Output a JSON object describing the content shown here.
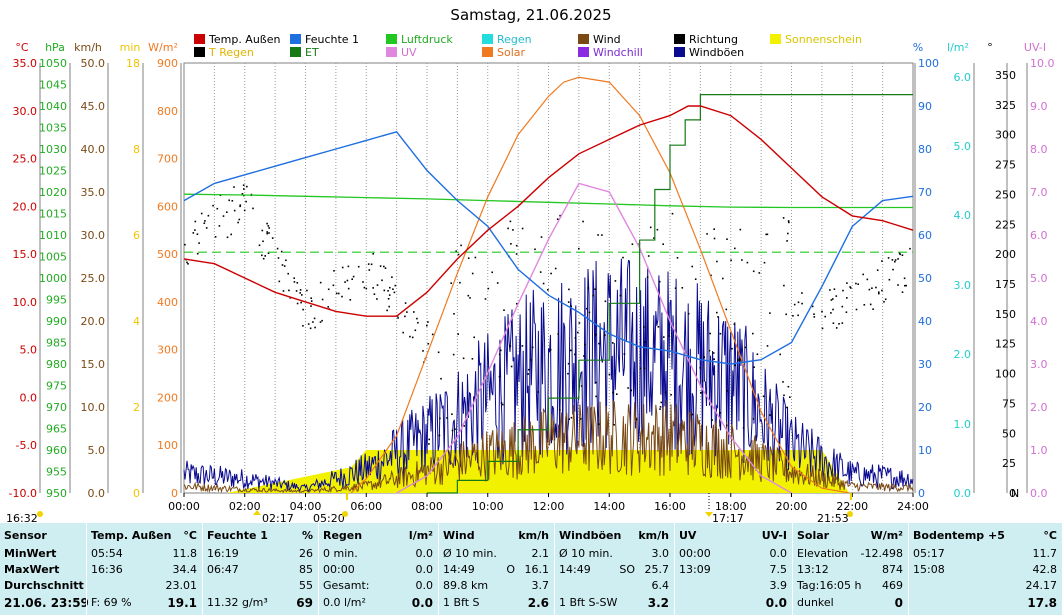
{
  "title": "Samstag, 21.06.2025",
  "legend": [
    {
      "label": "Temp. Außen",
      "color": "#cc0000"
    },
    {
      "label": "Feuchte 1",
      "color": "#1e6fe0"
    },
    {
      "label": "Luftdruck",
      "color": "#22c722"
    },
    {
      "label": "Regen",
      "color": "#22dddd"
    },
    {
      "label": "Wind",
      "color": "#7a4a14"
    },
    {
      "label": "Richtung",
      "color": "#000000"
    },
    {
      "label": "Sonnenschein",
      "color": "#f2f200"
    },
    {
      "label": "T Regen",
      "color": "#000000"
    },
    {
      "label": "ET",
      "color": "#157a15"
    },
    {
      "label": "UV",
      "color": "#e088e0"
    },
    {
      "label": "Solar",
      "color": "#f07a20"
    },
    {
      "label": "Windchill",
      "color": "#8a2be2"
    },
    {
      "label": "Windböen",
      "color": "#0a0a90"
    }
  ],
  "axes_left": [
    {
      "unit": "°C",
      "color": "#cc0000",
      "ticks": [
        "35.0",
        "30.0",
        "25.0",
        "20.0",
        "15.0",
        "10.0",
        "5.0",
        "0.0",
        "-5.0",
        "-10.0"
      ]
    },
    {
      "unit": "hPa",
      "color": "#22aa22",
      "ticks": [
        "1050",
        "1045",
        "1040",
        "1035",
        "1030",
        "1025",
        "1020",
        "1015",
        "1010",
        "1005",
        "1000",
        "995",
        "990",
        "985",
        "980",
        "975",
        "970",
        "965",
        "960",
        "955",
        "950"
      ]
    },
    {
      "unit": "km/h",
      "color": "#7a4a14",
      "ticks": [
        "50.0",
        "45.0",
        "40.0",
        "35.0",
        "30.0",
        "25.0",
        "20.0",
        "15.0",
        "10.0",
        "5.0",
        "0.0"
      ]
    },
    {
      "unit": "min",
      "color": "#f2c400",
      "ticks": [
        "18",
        "8",
        "6",
        "4",
        "2",
        "0"
      ]
    },
    {
      "unit": "W/m²",
      "color": "#f07a20",
      "ticks": [
        "900",
        "800",
        "700",
        "600",
        "500",
        "400",
        "300",
        "200",
        "100",
        "0"
      ]
    }
  ],
  "axes_right": [
    {
      "unit": "%",
      "color": "#1e6fe0",
      "ticks": [
        "100",
        "90",
        "80",
        "70",
        "60",
        "50",
        "40",
        "30",
        "20",
        "10",
        "0"
      ]
    },
    {
      "unit": "l/m²",
      "color": "#22cccc",
      "ticks": [
        "6.0",
        "5.0",
        "4.0",
        "3.0",
        "2.0",
        "1.0",
        "0.0"
      ]
    },
    {
      "unit": "°",
      "color": "#000000",
      "ticks": [
        "350",
        "325",
        "300",
        "275",
        "250",
        "225",
        "200",
        "175",
        "150",
        "125",
        "100",
        "75",
        "50",
        "25",
        "0"
      ],
      "n_label": "N"
    },
    {
      "unit": "UV-I",
      "color": "#d070d0",
      "ticks": [
        "10.0",
        "9.0",
        "8.0",
        "7.0",
        "6.0",
        "5.0",
        "4.0",
        "3.0",
        "2.0",
        "1.0",
        "0.0"
      ]
    }
  ],
  "x_ticks": [
    "00:00",
    "02:00",
    "04:00",
    "06:00",
    "08:00",
    "10:00",
    "12:00",
    "14:00",
    "16:00",
    "18:00",
    "20:00",
    "22:00",
    "24:00"
  ],
  "sun_events": {
    "sunrise": "05:20",
    "sunset": "21:53",
    "start": "16:32",
    "min_marker": "02:17",
    "max_marker": "17:17"
  },
  "chart_data": {
    "type": "line",
    "x_unit": "hours",
    "series": [
      {
        "name": "Temp. Außen",
        "unit": "°C",
        "x": [
          0,
          1,
          2,
          3,
          4,
          5,
          6,
          7,
          8,
          9,
          10,
          11,
          12,
          13,
          14,
          15,
          16,
          16.6,
          17,
          18,
          19,
          20,
          21,
          22,
          23,
          24
        ],
        "y": [
          14.5,
          14.0,
          12.5,
          11.0,
          10.0,
          9.0,
          8.5,
          8.5,
          11.0,
          14.5,
          17.5,
          20.0,
          23.0,
          25.5,
          27.0,
          28.5,
          29.5,
          30.5,
          30.5,
          29.5,
          27.0,
          24.0,
          21.0,
          19.0,
          18.5,
          17.5
        ]
      },
      {
        "name": "Feuchte 1",
        "unit": "%",
        "x": [
          0,
          1,
          2,
          3,
          4,
          5,
          6,
          7,
          8,
          9,
          10,
          11,
          12,
          13,
          14,
          15,
          16,
          17,
          18,
          19,
          20,
          21,
          22,
          23,
          24
        ],
        "y": [
          68,
          72,
          74,
          76,
          78,
          80,
          82,
          84,
          75,
          68,
          62,
          52,
          46,
          42,
          37,
          34,
          33,
          31,
          30,
          31,
          35,
          48,
          62,
          68,
          69
        ]
      },
      {
        "name": "Luftdruck",
        "unit": "hPa",
        "x": [
          0,
          2,
          4,
          6,
          8,
          10,
          12,
          14,
          16,
          18,
          20,
          22,
          24
        ],
        "y": [
          1019.5,
          1019.3,
          1019.0,
          1018.7,
          1018.4,
          1018.0,
          1017.6,
          1017.2,
          1016.8,
          1016.5,
          1016.4,
          1016.4,
          1016.4
        ]
      },
      {
        "name": "Solar",
        "unit": "W/m²",
        "x": [
          5.5,
          6,
          7,
          8,
          9,
          10,
          11,
          12,
          12.5,
          13,
          14,
          15,
          16,
          17,
          18,
          19,
          20,
          21,
          21.9
        ],
        "y": [
          0,
          30,
          120,
          290,
          460,
          620,
          750,
          830,
          860,
          870,
          860,
          790,
          670,
          510,
          340,
          170,
          55,
          10,
          0
        ]
      },
      {
        "name": "UV",
        "unit": "UV-I",
        "x": [
          7,
          8,
          9,
          10,
          11,
          12,
          13,
          14,
          15,
          16,
          17,
          18,
          19,
          20
        ],
        "y": [
          0,
          0.4,
          1.3,
          2.8,
          4.4,
          5.9,
          7.2,
          7.0,
          5.7,
          4.0,
          2.5,
          1.3,
          0.4,
          0
        ]
      },
      {
        "name": "ET",
        "unit": "l/m²",
        "x": [
          8,
          9,
          10,
          11,
          12,
          13,
          14,
          15,
          15.5,
          16,
          16.5,
          17,
          24
        ],
        "y": [
          0,
          0.2,
          0.5,
          1.0,
          1.5,
          2.1,
          3.0,
          4.0,
          4.8,
          5.5,
          5.9,
          6.3,
          6.3
        ]
      },
      {
        "name": "Wind",
        "unit": "km/h",
        "x": [
          0,
          2,
          4,
          6,
          8,
          10,
          12,
          14,
          16,
          18,
          20,
          22,
          24
        ],
        "y": [
          0.8,
          0.4,
          0.2,
          0.8,
          2.5,
          4.5,
          6.0,
          6.5,
          6.5,
          5.0,
          2.5,
          0.8,
          0.6
        ]
      },
      {
        "name": "Windböen",
        "unit": "km/h",
        "x": [
          0,
          2,
          4,
          6,
          8,
          10,
          12,
          14,
          16,
          18,
          20,
          22,
          24
        ],
        "y": [
          2.0,
          1.5,
          0.5,
          2.5,
          6.0,
          10.0,
          13.5,
          15.0,
          14.0,
          12.0,
          5.0,
          2.0,
          1.5
        ]
      },
      {
        "name": "Richtung",
        "unit": "°",
        "x": [
          0,
          2,
          4,
          6,
          8,
          10,
          12,
          14,
          16,
          18,
          20,
          22,
          24
        ],
        "y": [
          210,
          245,
          150,
          190,
          125,
          140,
          150,
          140,
          150,
          135,
          150,
          160,
          195
        ]
      }
    ],
    "sunshine": {
      "unit": "min",
      "x": [
        1.4,
        5.5,
        6,
        7,
        8,
        9,
        10,
        11,
        12,
        13,
        14,
        15,
        16,
        17,
        18,
        19,
        20,
        21,
        21.9
      ],
      "y": [
        0,
        0.6,
        1.0,
        1.0,
        1.0,
        1.0,
        1.0,
        1.0,
        1.0,
        1.0,
        1.0,
        1.0,
        1.0,
        1.0,
        1.0,
        1.0,
        1.0,
        1.0,
        0
      ]
    },
    "reference_line": {
      "label": "",
      "value": 56,
      "unit": "%"
    }
  },
  "stats": {
    "sensor": {
      "h1": "Sensor",
      "rows": [
        "MinWert",
        "MaxWert",
        "Durchschnitt"
      ],
      "footer": "21.06. 23:59"
    },
    "temp": {
      "h1": "Temp. Außen",
      "h2": "°C",
      "rows": [
        [
          "05:54",
          "11.8"
        ],
        [
          "16:36",
          "34.4"
        ],
        [
          "",
          "23.01"
        ]
      ],
      "footer_l": "F: 69 %",
      "footer_v": "19.1"
    },
    "feuchte": {
      "h1": "Feuchte 1",
      "h2": "%",
      "rows": [
        [
          "16:19",
          "26"
        ],
        [
          "06:47",
          "85"
        ],
        [
          "",
          "55"
        ]
      ],
      "footer_l": "11.32 g/m³",
      "footer_v": "69"
    },
    "regen": {
      "h1": "Regen",
      "h2": "l/m²",
      "rows": [
        [
          "0 min.",
          "0.0"
        ],
        [
          "00:00",
          "0.0"
        ],
        [
          "Gesamt:",
          "0.0"
        ]
      ],
      "footer_l": "0.0 l/m²",
      "footer_v": "0.0"
    },
    "wind": {
      "h1": "Wind",
      "h2": "km/h",
      "rows": [
        [
          "Ø 10 min.",
          "",
          "2.1"
        ],
        [
          "14:49",
          "O",
          "16.1"
        ],
        [
          "89.8 km",
          "",
          "3.7"
        ]
      ],
      "footer_l": "1 Bft S",
      "footer_v": "2.6"
    },
    "windboeen": {
      "h1": "Windböen",
      "h2": "km/h",
      "rows": [
        [
          "Ø 10 min.",
          "",
          "3.0"
        ],
        [
          "14:49",
          "SO",
          "25.7"
        ],
        [
          "",
          "",
          "6.4"
        ]
      ],
      "footer_l": "1 Bft S-SW",
      "footer_v": "3.2"
    },
    "uv": {
      "h1": "UV",
      "h2": "UV-I",
      "rows": [
        [
          "00:00",
          "0.0"
        ],
        [
          "13:09",
          "7.5"
        ],
        [
          "",
          "3.9"
        ]
      ],
      "footer_l": "",
      "footer_v": "0.0"
    },
    "solar": {
      "h1": "Solar",
      "h2": "W/m²",
      "rows": [
        [
          "Elevation",
          "-12.498"
        ],
        [
          "13:12",
          "874"
        ],
        [
          "Tag:16:05 h",
          "469"
        ]
      ],
      "footer_l": "dunkel",
      "footer_v": "0"
    },
    "boden": {
      "h1": "Bodentemp +5",
      "h2": "°C",
      "rows": [
        [
          "05:17",
          "11.7"
        ],
        [
          "15:08",
          "42.8"
        ],
        [
          "",
          "24.17"
        ]
      ],
      "footer_l": "",
      "footer_v": "17.8"
    }
  }
}
